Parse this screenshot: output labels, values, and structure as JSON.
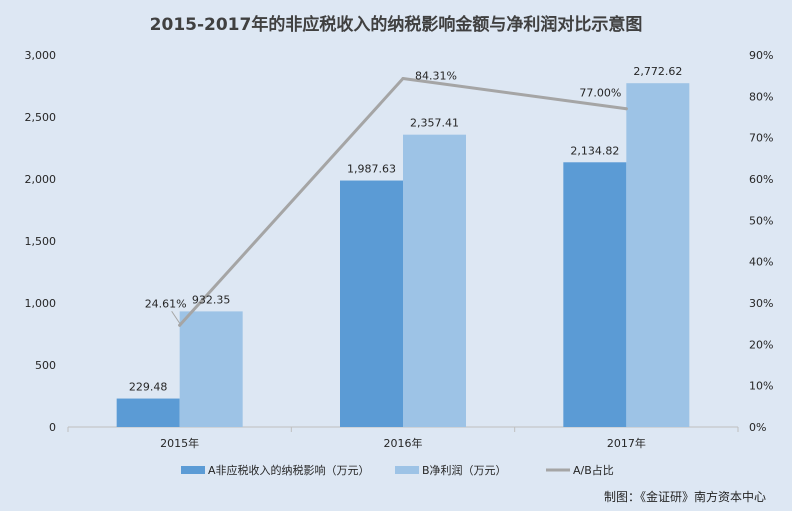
{
  "chart_data": {
    "type": "bar",
    "title": "2015-2017年的非应税收入的纳税影响金额与净利润对比示意图",
    "categories": [
      "2015年",
      "2016年",
      "2017年"
    ],
    "series": [
      {
        "name": "A非应税收入的纳税影响（万元）",
        "kind": "bar",
        "axis": "left",
        "color": "#5b9bd5",
        "values": [
          229.48,
          1987.63,
          2134.82
        ],
        "labels": [
          "229.48",
          "1,987.63",
          "2,134.82"
        ]
      },
      {
        "name": "B净利润（万元）",
        "kind": "bar",
        "axis": "left",
        "color": "#9dc3e6",
        "values": [
          932.35,
          2357.41,
          2772.62
        ],
        "labels": [
          "932.35",
          "2,357.41",
          "2,772.62"
        ]
      },
      {
        "name": "A/B占比",
        "kind": "line",
        "axis": "right",
        "color": "#a5a5a5",
        "values": [
          24.61,
          84.31,
          77.0
        ],
        "labels": [
          "24.61%",
          "84.31%",
          "77.00%"
        ]
      }
    ],
    "y_left": {
      "range": [
        0,
        3000
      ],
      "ticks": [
        0,
        500,
        1000,
        1500,
        2000,
        2500,
        3000
      ],
      "tick_labels": [
        "0",
        "500",
        "1,000",
        "1,500",
        "2,000",
        "2,500",
        "3,000"
      ]
    },
    "y_right": {
      "range": [
        0,
        90
      ],
      "ticks": [
        0,
        10,
        20,
        30,
        40,
        50,
        60,
        70,
        80,
        90
      ],
      "tick_labels": [
        "0%",
        "10%",
        "20%",
        "30%",
        "40%",
        "50%",
        "60%",
        "70%",
        "80%",
        "90%"
      ]
    },
    "grid": false,
    "legend_position": "bottom"
  },
  "credit": "制图：《金证研》南方资本中心",
  "colors": {
    "background": "#dde7f3",
    "axis": "#bfbfbf",
    "text": "#262626",
    "title": "#404040"
  }
}
